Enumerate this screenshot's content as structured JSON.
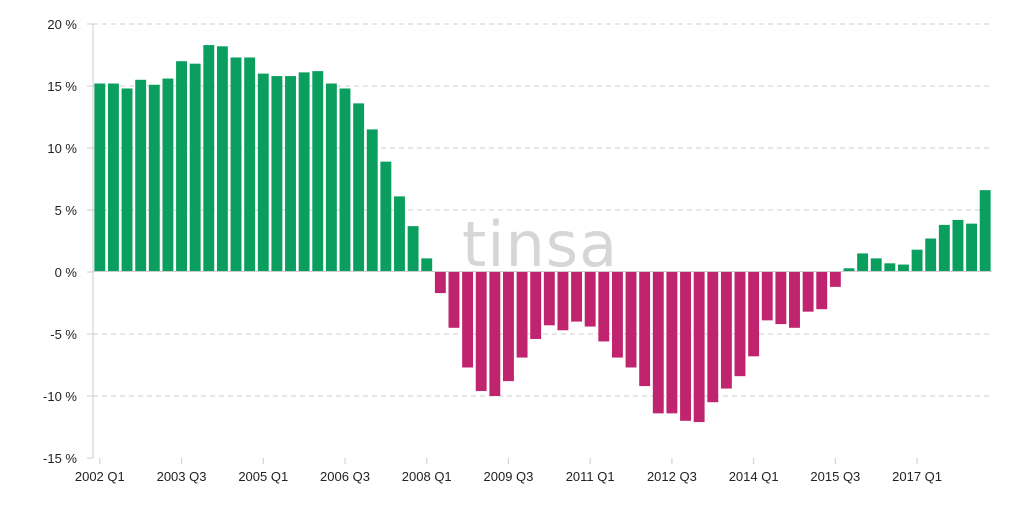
{
  "watermark": "tinsa",
  "chart_data": {
    "type": "bar",
    "title": "",
    "xlabel": "",
    "ylabel": "",
    "ylim": [
      -15,
      20
    ],
    "yticks": [
      20,
      15,
      10,
      5,
      0,
      -5,
      -10,
      -15
    ],
    "ytick_labels": [
      "20 %",
      "15 %",
      "10 %",
      "5 %",
      "0 %",
      "-5 %",
      "-10 %",
      "-15 %"
    ],
    "xtick_labels": [
      "2002 Q1",
      "2003 Q3",
      "2005 Q1",
      "2006 Q3",
      "2008 Q1",
      "2009 Q3",
      "2011 Q1",
      "2012 Q3",
      "2014 Q1",
      "2015 Q3",
      "2017 Q1"
    ],
    "grid": true,
    "colors": {
      "positive": "#0a9f5e",
      "negative": "#c0246f",
      "grid": "#cccccc",
      "axis": "#cccccc"
    },
    "categories": [
      "2002 Q1",
      "2002 Q2",
      "2002 Q3",
      "2002 Q4",
      "2003 Q1",
      "2003 Q2",
      "2003 Q3",
      "2003 Q4",
      "2004 Q1",
      "2004 Q2",
      "2004 Q3",
      "2004 Q4",
      "2005 Q1",
      "2005 Q2",
      "2005 Q3",
      "2005 Q4",
      "2006 Q1",
      "2006 Q2",
      "2006 Q3",
      "2006 Q4",
      "2007 Q1",
      "2007 Q2",
      "2007 Q3",
      "2007 Q4",
      "2008 Q1",
      "2008 Q2",
      "2008 Q3",
      "2008 Q4",
      "2009 Q1",
      "2009 Q2",
      "2009 Q3",
      "2009 Q4",
      "2010 Q1",
      "2010 Q2",
      "2010 Q3",
      "2010 Q4",
      "2011 Q1",
      "2011 Q2",
      "2011 Q3",
      "2011 Q4",
      "2012 Q1",
      "2012 Q2",
      "2012 Q3",
      "2012 Q4",
      "2013 Q1",
      "2013 Q2",
      "2013 Q3",
      "2013 Q4",
      "2014 Q1",
      "2014 Q2",
      "2014 Q3",
      "2014 Q4",
      "2015 Q1",
      "2015 Q2",
      "2015 Q3",
      "2015 Q4",
      "2016 Q1",
      "2016 Q2",
      "2016 Q3",
      "2016 Q4",
      "2017 Q1",
      "2017 Q2",
      "2017 Q3",
      "2017 Q4",
      "2018 Q1",
      "2018 Q2"
    ],
    "values": [
      15.2,
      15.2,
      14.8,
      15.5,
      15.1,
      15.6,
      17.0,
      16.8,
      18.3,
      18.2,
      17.3,
      17.3,
      16.0,
      15.8,
      15.8,
      16.1,
      16.2,
      15.2,
      14.8,
      13.6,
      11.5,
      8.9,
      6.1,
      3.7,
      1.1,
      -1.7,
      -4.5,
      -7.7,
      -9.6,
      -10.0,
      -8.8,
      -6.9,
      -5.4,
      -4.3,
      -4.7,
      -4.0,
      -4.4,
      -5.6,
      -6.9,
      -7.7,
      -9.2,
      -11.4,
      -11.4,
      -12.0,
      -12.1,
      -10.5,
      -9.4,
      -8.4,
      -6.8,
      -3.9,
      -4.2,
      -4.5,
      -3.2,
      -3.0,
      -1.2,
      0.3,
      1.5,
      1.1,
      0.7,
      0.6,
      1.8,
      2.7,
      3.8,
      4.2,
      3.9,
      6.6
    ]
  }
}
